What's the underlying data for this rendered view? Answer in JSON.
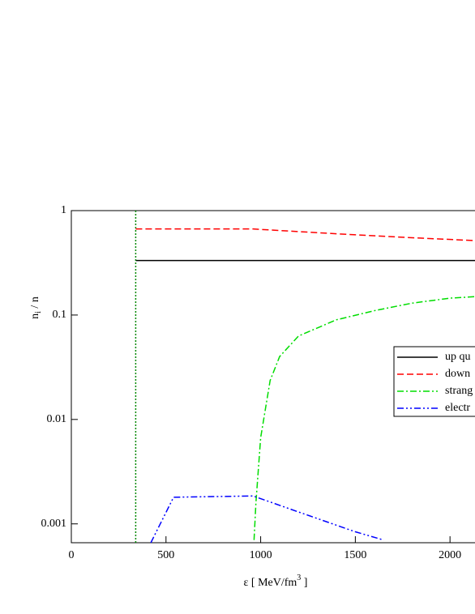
{
  "chart_data": {
    "type": "line",
    "y_label": [
      "n",
      "i",
      " / n"
    ],
    "x_label": [
      "ε [ MeV/fm",
      "3",
      " ]"
    ],
    "xlim": [
      0,
      2132
    ],
    "xticks": [
      0,
      500,
      1000,
      1500,
      2000
    ],
    "ylim": [
      0.00066,
      1
    ],
    "yticks": [
      1,
      0.1,
      0.01,
      0.001
    ],
    "log_y": true,
    "legend": "right",
    "series": [
      {
        "name": "up qu",
        "color": "#000000",
        "dash": "solid",
        "x": [
          340,
          2132
        ],
        "values": [
          0.333,
          0.333
        ]
      },
      {
        "name": "down",
        "color": "#ff0000",
        "dash": "dashed",
        "x": [
          340,
          960,
          1400,
          1800,
          2132
        ],
        "values": [
          0.667,
          0.667,
          0.6,
          0.55,
          0.516
        ]
      },
      {
        "name": "strang",
        "color": "#00dd00",
        "dash": "dashdot",
        "x": [
          965,
          975,
          1000,
          1050,
          1100,
          1200,
          1400,
          1600,
          1800,
          2000,
          2132
        ],
        "values": [
          0.0007,
          0.0016,
          0.0067,
          0.0236,
          0.04,
          0.063,
          0.09,
          0.11,
          0.13,
          0.145,
          0.15
        ]
      },
      {
        "name": "electr",
        "color": "#0000ff",
        "dash": "dashdotdot",
        "x": [
          420,
          540,
          960,
          1200,
          1500,
          1650
        ],
        "values": [
          0.00066,
          0.0018,
          0.00185,
          0.0013,
          0.00084,
          0.0007
        ]
      },
      {
        "color": "#008800",
        "dash": "dotted",
        "x": [
          340,
          340
        ],
        "values": [
          0.00066,
          1
        ]
      }
    ]
  }
}
